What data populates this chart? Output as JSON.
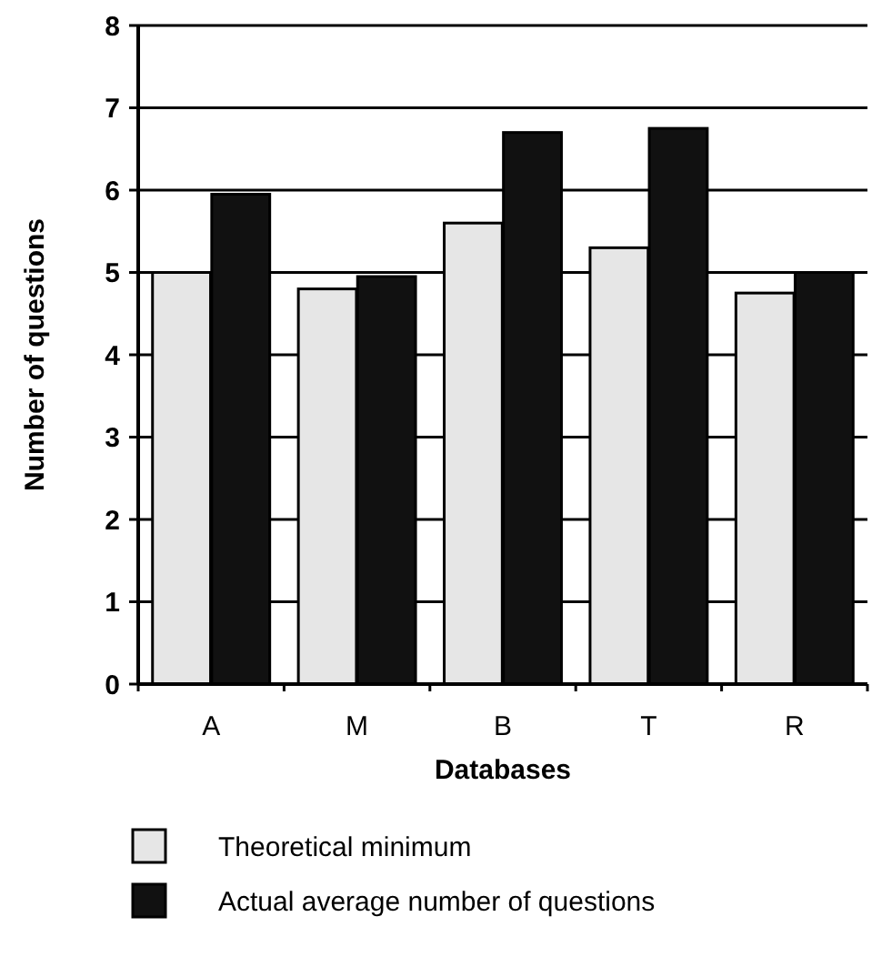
{
  "chart_data": {
    "type": "bar",
    "xlabel": "Databases",
    "ylabel": "Number of questions",
    "categories": [
      "A",
      "M",
      "B",
      "T",
      "R"
    ],
    "series": [
      {
        "name": "Theoretical minimum",
        "color": "#e6e6e6",
        "values": [
          5.0,
          4.8,
          5.6,
          5.3,
          4.75
        ]
      },
      {
        "name": "Actual average number of questions",
        "color": "#111111",
        "values": [
          5.95,
          4.95,
          6.7,
          6.75,
          5.0
        ]
      }
    ],
    "ylim": [
      0,
      8
    ],
    "yticks": [
      0,
      1,
      2,
      3,
      4,
      5,
      6,
      7,
      8
    ],
    "grid": "y",
    "legend": "bottom"
  }
}
